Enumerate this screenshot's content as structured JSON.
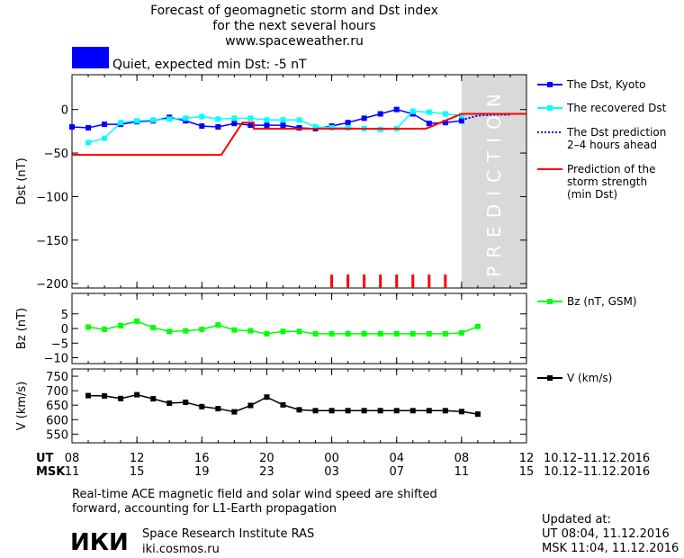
{
  "header": {
    "title_lines": [
      "Forecast of geomagnetic storm and Dst index",
      "for the next several hours",
      "www.spaceweather.ru"
    ],
    "status_text": "Quiet, expected min Dst: -5 nT",
    "status_color": "#0000ff"
  },
  "chart_data": [
    {
      "type": "line",
      "ylabel": "Dst (nT)",
      "ylim": [
        -205,
        40
      ],
      "yticks": [
        0,
        -50,
        -100,
        -150,
        -200
      ],
      "ytick_labels": [
        "0",
        "−50",
        "−100",
        "−150",
        "−200"
      ],
      "xlim": [
        8,
        36
      ],
      "prediction_band": {
        "from": 32,
        "to": 36,
        "label": "PREDICTION",
        "color": "#d9d9d9"
      },
      "series": [
        {
          "name": "The Dst, Kyoto",
          "color": "#0000ff",
          "marker": "square",
          "x": [
            8,
            9,
            10,
            11,
            12,
            13,
            14,
            15,
            16,
            17,
            18,
            19,
            20,
            21,
            22,
            23,
            24,
            25,
            26,
            27,
            28,
            29,
            30,
            31,
            32
          ],
          "y": [
            -20,
            -21,
            -17,
            -17,
            -14,
            -13,
            -9,
            -13,
            -19,
            -20,
            -16,
            -18,
            -18,
            -18,
            -21,
            -22,
            -19,
            -15,
            -10,
            -5,
            0,
            -5,
            -16,
            -15,
            -13
          ]
        },
        {
          "name": "The recovered Dst",
          "color": "#00ffff",
          "marker": "square",
          "x": [
            9,
            10,
            11,
            12,
            13,
            14,
            15,
            16,
            17,
            18,
            19,
            20,
            21,
            22,
            23,
            24,
            25,
            26,
            27,
            28,
            29,
            30,
            31,
            32
          ],
          "y": [
            -38,
            -33,
            -15,
            -13,
            -12,
            -11,
            -10,
            -8,
            -11,
            -10,
            -10,
            -12,
            -12,
            -12,
            -20,
            -21,
            -21,
            -22,
            -23,
            -22,
            -2,
            -3,
            -5,
            -7
          ]
        },
        {
          "name": "The Dst prediction",
          "name2": "2–4 hours ahead",
          "color": "#0000ff",
          "dashed": true,
          "x": [
            32,
            33,
            34,
            35
          ],
          "y": [
            -12,
            -7,
            -6,
            -6
          ]
        },
        {
          "name": "Prediction of the",
          "name2": "storm strength",
          "name3": "(min Dst)",
          "color": "#ff0000",
          "step": true,
          "x": [
            8,
            17.2,
            18.5,
            19.2,
            19.2,
            27.2,
            29.8,
            32,
            32,
            36
          ],
          "y": [
            -52,
            -52,
            -15,
            -15,
            -22,
            -22,
            -22,
            -5,
            -5,
            -5
          ]
        }
      ],
      "markers_x": [
        24,
        25,
        26,
        27,
        28,
        29,
        30,
        31
      ]
    },
    {
      "type": "line",
      "ylabel": "Bz (nT)",
      "ylim": [
        -12,
        12
      ],
      "yticks": [
        5,
        0,
        -5,
        -10
      ],
      "ytick_labels": [
        "5",
        "0",
        "−5",
        "−10"
      ],
      "xlim": [
        8,
        36
      ],
      "series": [
        {
          "name": "Bz (nT, GSM)",
          "color": "#00ff00",
          "marker": "square",
          "x": [
            9,
            10,
            11,
            12,
            13,
            14,
            15,
            16,
            17,
            18,
            19,
            20,
            21,
            22,
            23,
            24,
            25,
            26,
            27,
            28,
            29,
            30,
            31,
            32,
            33
          ],
          "y": [
            0.5,
            -0.3,
            1,
            2.5,
            0.3,
            -1,
            -0.8,
            -0.3,
            1.2,
            -0.5,
            -0.8,
            -1.8,
            -1,
            -1,
            -1.8,
            -1.8,
            -1.8,
            -1.8,
            -1.8,
            -1.8,
            -1.8,
            -1.8,
            -1.8,
            -1.5,
            0.7
          ]
        }
      ]
    },
    {
      "type": "line",
      "ylabel": "V (km/s)",
      "ylim": [
        520,
        775
      ],
      "yticks": [
        750,
        700,
        650,
        600,
        550
      ],
      "ytick_labels": [
        "750",
        "700",
        "650",
        "600",
        "550"
      ],
      "xlim": [
        8,
        36
      ],
      "series": [
        {
          "name": "V (km/s)",
          "color": "#000000",
          "marker": "square",
          "x": [
            9,
            10,
            11,
            12,
            13,
            14,
            15,
            16,
            17,
            18,
            19,
            20,
            21,
            22,
            23,
            24,
            25,
            26,
            27,
            28,
            29,
            30,
            31,
            32,
            33
          ],
          "y": [
            683,
            682,
            673,
            686,
            672,
            657,
            660,
            645,
            638,
            627,
            649,
            678,
            651,
            634,
            631,
            631,
            631,
            631,
            631,
            631,
            631,
            631,
            631,
            628,
            619
          ]
        }
      ]
    }
  ],
  "x_axis": {
    "ut_label": "UT",
    "msk_label": "MSK",
    "ticks": [
      8,
      12,
      16,
      20,
      24,
      28,
      32,
      36
    ],
    "ut_ticks": [
      "08",
      "12",
      "16",
      "20",
      "00",
      "04",
      "08",
      "12"
    ],
    "msk_ticks": [
      "11",
      "15",
      "19",
      "23",
      "03",
      "07",
      "11",
      "15"
    ],
    "ut_range": "10.12–11.12.2016",
    "msk_range": "10.12–11.12.2016"
  },
  "footer": {
    "note_line1": "Real-time ACE magnetic field and solar wind speed are shifted",
    "note_line2": "forward, accounting for L1-Earth propagation",
    "logo_text": "ИКИ",
    "institute": "Space Research Institute RAS",
    "website": "iki.cosmos.ru",
    "updated_label": "Updated at:",
    "updated_ut": "UT   08:04, 11.12.2016",
    "updated_msk": "MSK 11:04, 11.12.2016"
  }
}
